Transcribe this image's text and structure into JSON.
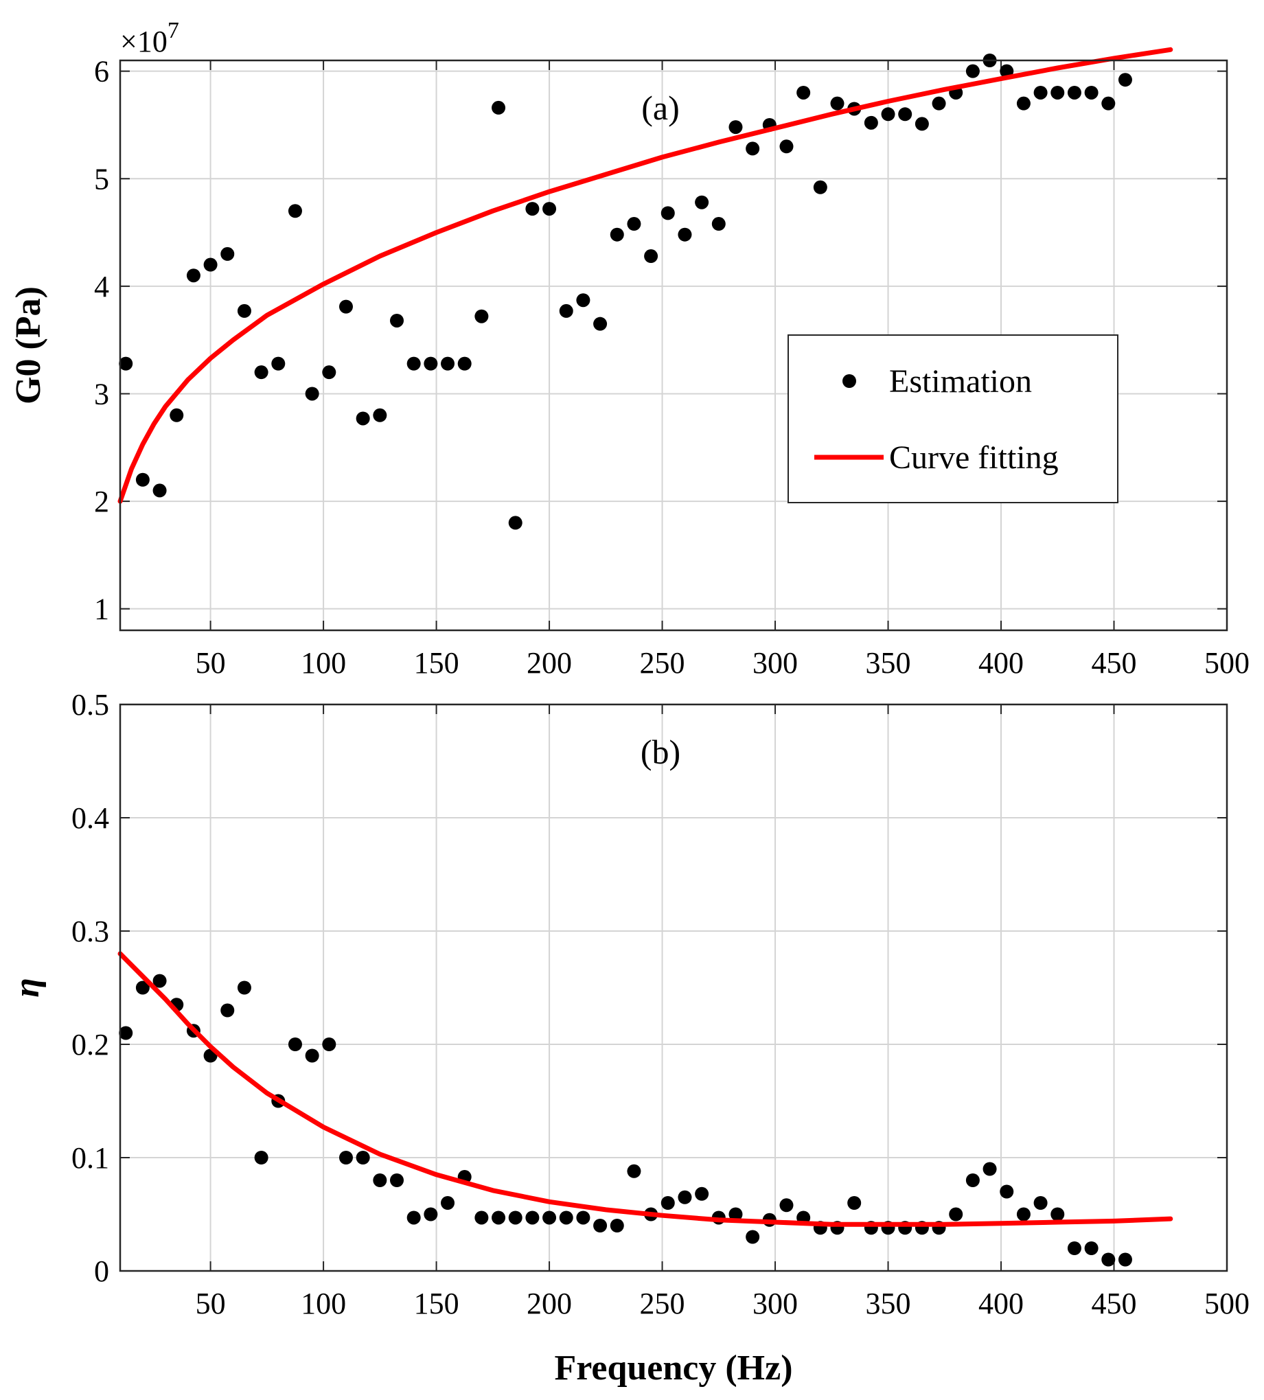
{
  "chart_data": [
    {
      "id": "a",
      "type": "scatter",
      "panel_label": "(a)",
      "ylabel": "G0 (Pa)",
      "y_multiplier_base": "×10",
      "y_multiplier_exp": "7",
      "xlim": [
        10,
        500
      ],
      "ylim": [
        0.8,
        6.1
      ],
      "xticks": [
        50,
        100,
        150,
        200,
        250,
        300,
        350,
        400,
        450,
        500
      ],
      "yticks": [
        1,
        2,
        3,
        4,
        5,
        6
      ],
      "grid": true,
      "legend_position": "center-right",
      "legend": {
        "points": "Estimation",
        "fit": "Curve fitting"
      },
      "colors": {
        "points": "#000000",
        "fit": "#ff0000"
      },
      "series": [
        {
          "name": "Estimation",
          "kind": "scatter",
          "x": [
            12.5,
            20,
            27.5,
            35,
            42.5,
            50,
            57.5,
            65,
            72.5,
            80,
            87.5,
            95,
            102.5,
            110,
            117.5,
            125,
            132.5,
            140,
            147.5,
            155,
            162.5,
            170,
            177.5,
            185,
            192.5,
            200,
            207.5,
            215,
            222.5,
            230,
            237.5,
            245,
            252.5,
            260,
            267.5,
            275,
            282.5,
            290,
            297.5,
            305,
            312.5,
            320,
            327.5,
            335,
            342.5,
            350,
            357.5,
            365,
            372.5,
            380,
            387.5,
            395,
            402.5,
            410,
            417.5,
            425,
            432.5,
            440,
            447.5,
            455
          ],
          "y": [
            3.28,
            2.2,
            2.1,
            2.8,
            4.1,
            4.2,
            4.3,
            3.77,
            3.2,
            3.28,
            4.7,
            3.0,
            3.2,
            3.81,
            2.77,
            2.8,
            3.68,
            3.28,
            3.28,
            3.28,
            3.28,
            3.72,
            5.66,
            1.8,
            4.72,
            4.72,
            3.77,
            3.87,
            3.65,
            4.48,
            4.58,
            4.28,
            4.68,
            4.48,
            4.78,
            4.58,
            5.48,
            5.28,
            5.5,
            5.3,
            5.8,
            4.92,
            5.7,
            5.65,
            5.52,
            5.6,
            5.6,
            5.51,
            5.7,
            5.8,
            6.0,
            6.1,
            6.0,
            5.7,
            5.8,
            5.8,
            5.8,
            5.8,
            5.7,
            5.92
          ]
        },
        {
          "name": "Curve fitting",
          "kind": "line",
          "x": [
            10,
            15,
            20,
            25,
            30,
            40,
            50,
            60,
            75,
            100,
            125,
            150,
            175,
            200,
            225,
            250,
            275,
            300,
            325,
            350,
            375,
            400,
            425,
            450,
            475
          ],
          "y": [
            2.0,
            2.3,
            2.53,
            2.72,
            2.88,
            3.13,
            3.33,
            3.5,
            3.73,
            4.02,
            4.28,
            4.5,
            4.7,
            4.88,
            5.04,
            5.2,
            5.34,
            5.47,
            5.6,
            5.72,
            5.83,
            5.93,
            6.03,
            6.12,
            6.2
          ]
        }
      ]
    },
    {
      "id": "b",
      "type": "scatter",
      "panel_label": "(b)",
      "ylabel": "η",
      "xlabel": "Frequency (Hz)",
      "xlim": [
        10,
        500
      ],
      "ylim": [
        0,
        0.5
      ],
      "xticks": [
        50,
        100,
        150,
        200,
        250,
        300,
        350,
        400,
        450,
        500
      ],
      "yticks": [
        0,
        0.1,
        0.2,
        0.3,
        0.4,
        0.5
      ],
      "ytick_labels": [
        "0",
        "0.1",
        "0.2",
        "0.3",
        "0.4",
        "0.5"
      ],
      "grid": true,
      "colors": {
        "points": "#000000",
        "fit": "#ff0000"
      },
      "series": [
        {
          "name": "Estimation",
          "kind": "scatter",
          "x": [
            12.5,
            20,
            27.5,
            35,
            42.5,
            50,
            57.5,
            65,
            72.5,
            80,
            87.5,
            95,
            102.5,
            110,
            117.5,
            125,
            132.5,
            140,
            147.5,
            155,
            162.5,
            170,
            177.5,
            185,
            192.5,
            200,
            207.5,
            215,
            222.5,
            230,
            237.5,
            245,
            252.5,
            260,
            267.5,
            275,
            282.5,
            290,
            297.5,
            305,
            312.5,
            320,
            327.5,
            335,
            342.5,
            350,
            357.5,
            365,
            372.5,
            380,
            387.5,
            395,
            402.5,
            410,
            417.5,
            425,
            432.5,
            440,
            447.5,
            455
          ],
          "y": [
            0.21,
            0.25,
            0.256,
            0.235,
            0.212,
            0.19,
            0.23,
            0.25,
            0.1,
            0.15,
            0.2,
            0.19,
            0.2,
            0.1,
            0.1,
            0.08,
            0.08,
            0.047,
            0.05,
            0.06,
            0.083,
            0.047,
            0.047,
            0.047,
            0.047,
            0.047,
            0.047,
            0.047,
            0.04,
            0.04,
            0.088,
            0.05,
            0.06,
            0.065,
            0.068,
            0.047,
            0.05,
            0.03,
            0.045,
            0.058,
            0.047,
            0.038,
            0.038,
            0.06,
            0.038,
            0.038,
            0.038,
            0.038,
            0.038,
            0.05,
            0.08,
            0.09,
            0.07,
            0.05,
            0.06,
            0.05,
            0.02,
            0.02,
            0.01,
            0.01
          ]
        },
        {
          "name": "Curve fitting",
          "kind": "line",
          "x": [
            10,
            20,
            30,
            40,
            50,
            60,
            75,
            100,
            125,
            150,
            175,
            200,
            225,
            250,
            275,
            300,
            325,
            350,
            375,
            400,
            425,
            450,
            475
          ],
          "y": [
            0.28,
            0.26,
            0.24,
            0.218,
            0.198,
            0.18,
            0.157,
            0.127,
            0.103,
            0.085,
            0.071,
            0.061,
            0.054,
            0.049,
            0.045,
            0.043,
            0.041,
            0.041,
            0.041,
            0.042,
            0.043,
            0.044,
            0.046
          ]
        }
      ]
    }
  ]
}
